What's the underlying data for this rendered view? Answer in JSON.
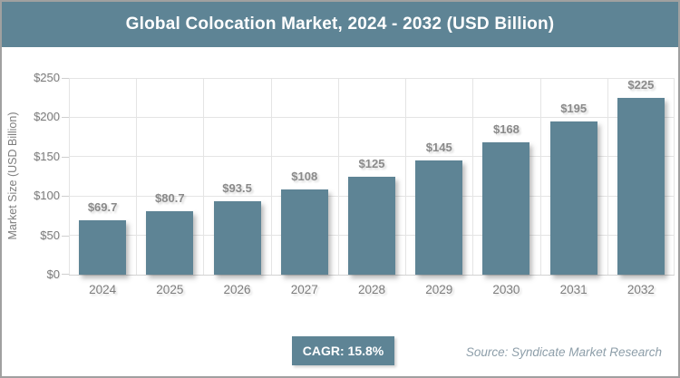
{
  "header": {
    "title": "Global Colocation Market, 2024 - 2032 (USD Billion)"
  },
  "chart_data": {
    "type": "bar",
    "title": "Global Colocation Market, 2024 - 2032 (USD Billion)",
    "categories": [
      "2024",
      "2025",
      "2026",
      "2027",
      "2028",
      "2029",
      "2030",
      "2031",
      "2032"
    ],
    "values": [
      69.7,
      80.7,
      93.5,
      108,
      125,
      145,
      168,
      195,
      225
    ],
    "bar_labels": [
      "$69.7",
      "$80.7",
      "$93.5",
      "$108",
      "$125",
      "$145",
      "$168",
      "$195",
      "$225"
    ],
    "xlabel": "",
    "ylabel": "Market Size (USD Billion)",
    "ylim": [
      0,
      250
    ],
    "ytick_step": 50,
    "ytick_labels": [
      "$0",
      "$50",
      "$100",
      "$150",
      "$200",
      "$250"
    ],
    "grid": true,
    "legend_position": "none"
  },
  "footer": {
    "cagr_label": "CAGR: 15.8%",
    "source": "Source: Syndicate Market Research"
  },
  "colors": {
    "accent": "#5e8495",
    "bar": "#5e8495",
    "grid": "#e4e4e4",
    "axis_text": "#7d7d7d",
    "data_label": "#8a8a8a",
    "title_text": "#ffffff",
    "source_text": "#8d9ea9",
    "frame_border": "#a0a0a0"
  }
}
